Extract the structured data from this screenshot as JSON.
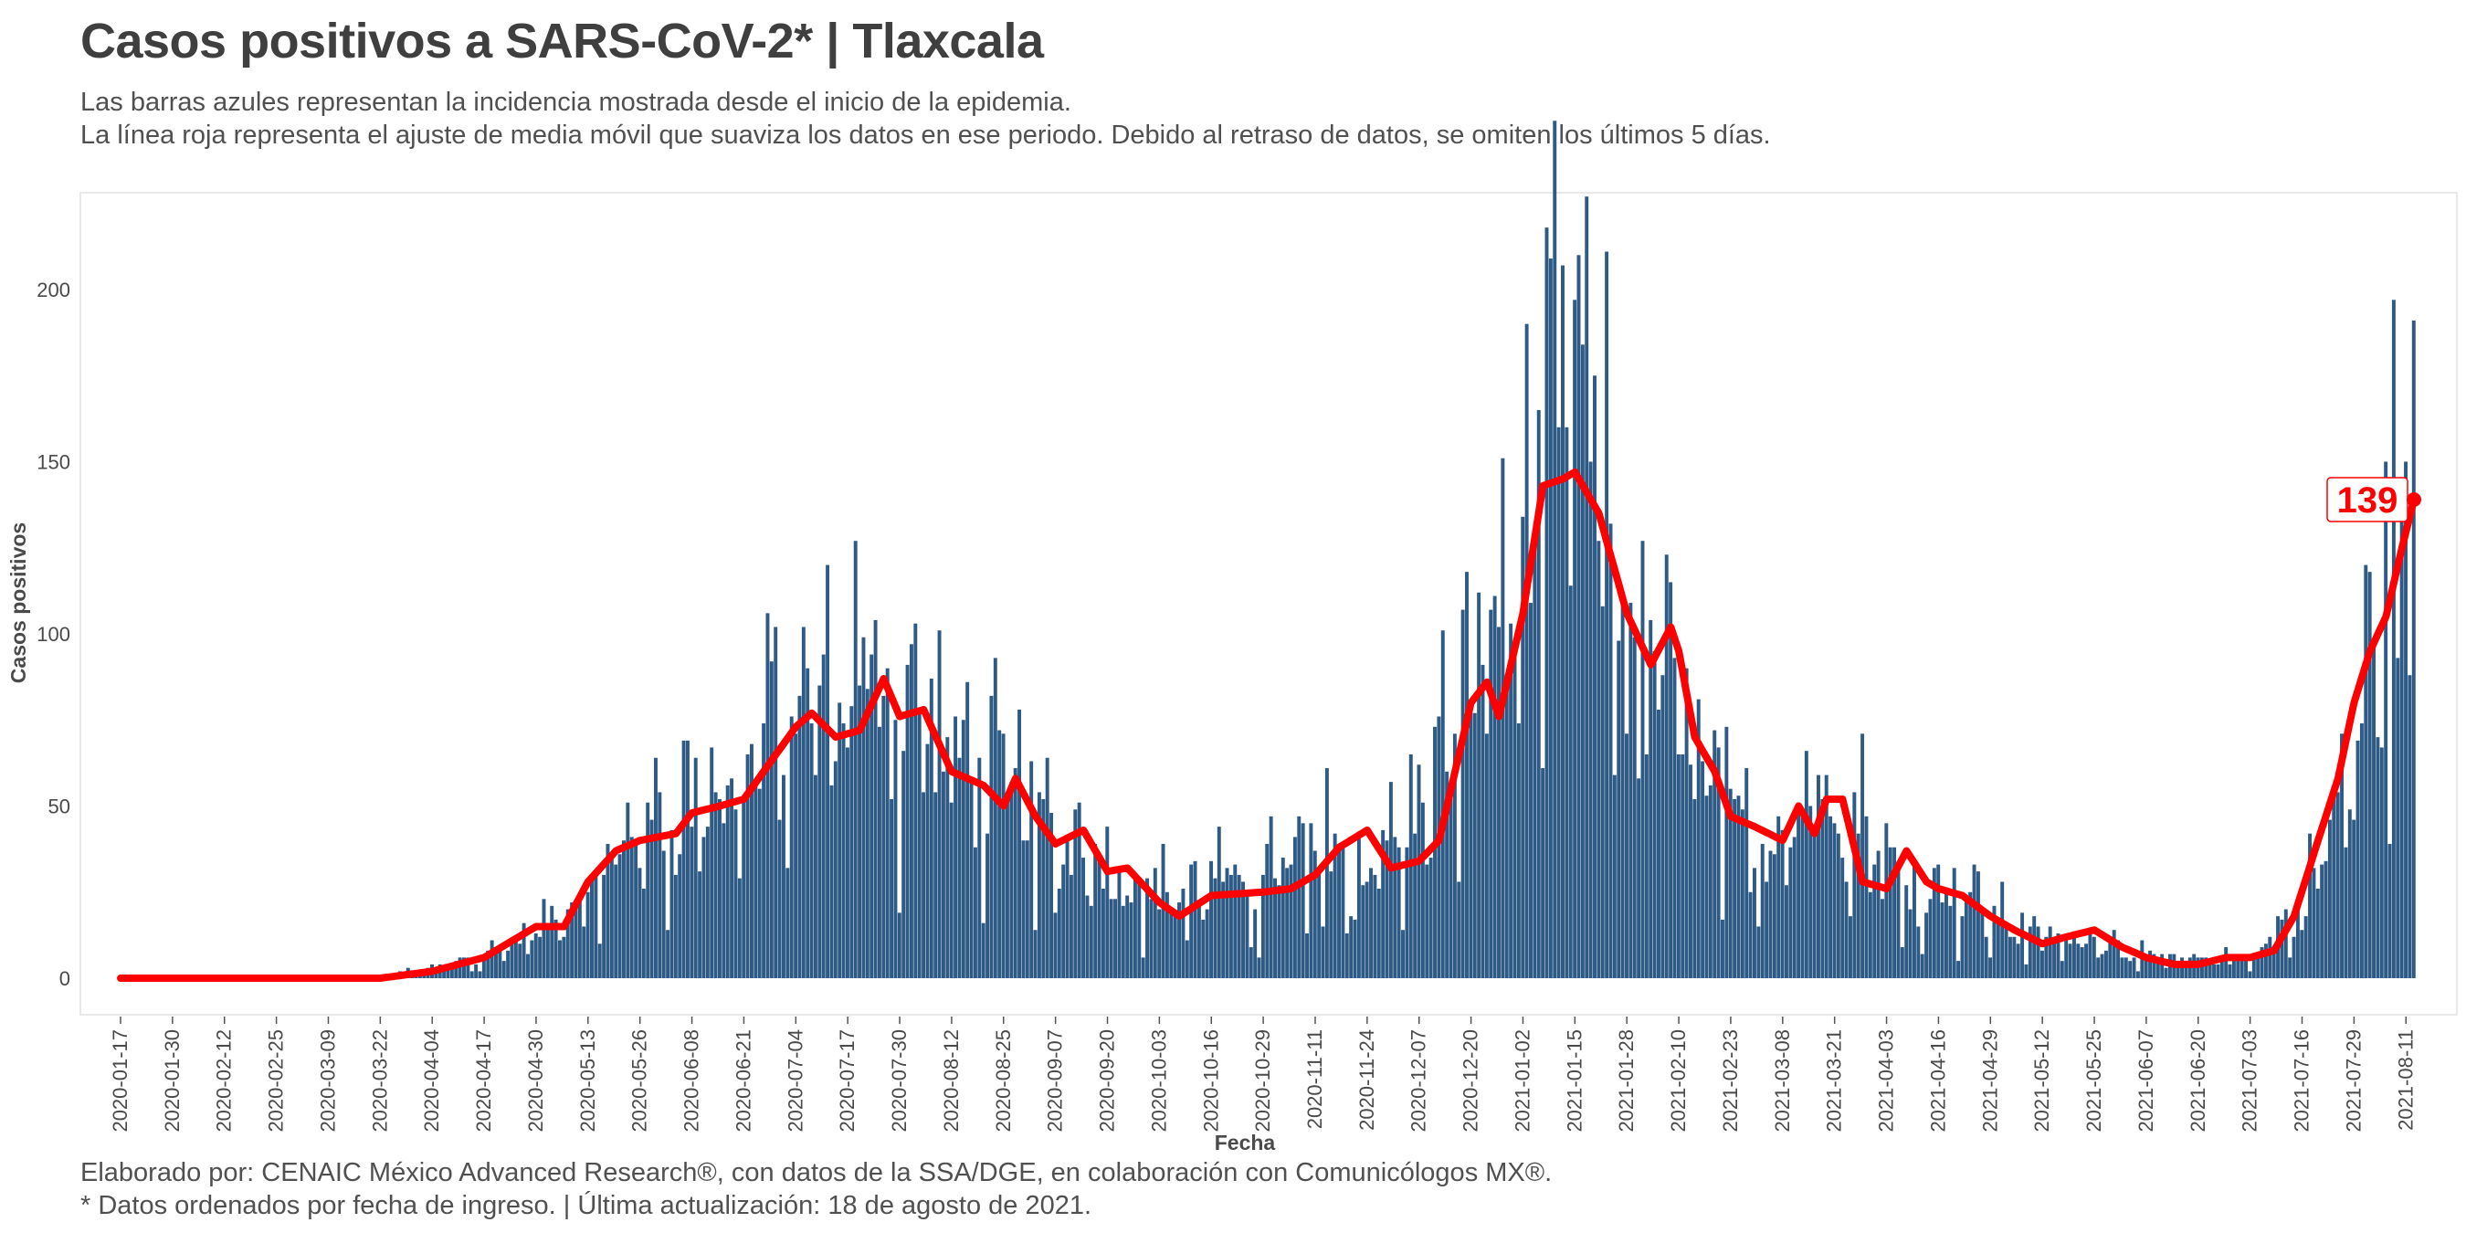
{
  "title": "Casos positivos a SARS-CoV-2* | Tlaxcala",
  "subtitle_line1": "Las barras azules representan la incidencia mostrada desde el inicio de la epidemia.",
  "subtitle_line2": "La línea roja representa el ajuste de media móvil que suaviza los datos en ese periodo. Debido al retraso de datos, se omiten los últimos 5 días.",
  "footer_line1": "Elaborado por: CENAIC México Advanced Research®, con datos de la SSA/DGE, en colaboración con Comunicólogos MX®.",
  "footer_line2": "* Datos ordenados por fecha de ingreso. | Última actualización: 18 de agosto de 2021.",
  "colors": {
    "bar": "#2e5a86",
    "line": "#ff0000",
    "text": "#444444"
  },
  "chart_data": {
    "type": "bar",
    "xlabel": "Fecha",
    "ylabel": "Casos positivos",
    "x_start": "2020-01-17",
    "x_end": "2021-08-13",
    "ylim": [
      -10,
      222
    ],
    "yticks": [
      0,
      50,
      100,
      150,
      200
    ],
    "xticks": [
      "2020-01-17",
      "2020-01-30",
      "2020-02-12",
      "2020-02-25",
      "2020-03-09",
      "2020-03-22",
      "2020-04-04",
      "2020-04-17",
      "2020-04-30",
      "2020-05-13",
      "2020-05-26",
      "2020-06-08",
      "2020-06-21",
      "2020-07-04",
      "2020-07-17",
      "2020-07-30",
      "2020-08-12",
      "2020-08-25",
      "2020-09-07",
      "2020-09-20",
      "2020-10-03",
      "2020-10-16",
      "2020-10-29",
      "2020-11-11",
      "2020-11-24",
      "2020-12-07",
      "2020-12-20",
      "2021-01-02",
      "2021-01-15",
      "2021-01-28",
      "2021-02-10",
      "2021-02-23",
      "2021-03-08",
      "2021-03-21",
      "2021-04-03",
      "2021-04-16",
      "2021-04-29",
      "2021-05-12",
      "2021-05-25",
      "2021-06-07",
      "2021-06-20",
      "2021-07-03",
      "2021-07-16",
      "2021-07-29",
      "2021-08-11"
    ],
    "bar_profile_dates": [
      "2020-01-17",
      "2020-03-05",
      "2020-03-25",
      "2020-04-05",
      "2020-04-17",
      "2020-04-30",
      "2020-05-13",
      "2020-05-26",
      "2020-06-08",
      "2020-06-21",
      "2020-07-04",
      "2020-07-12",
      "2020-07-20",
      "2020-07-30",
      "2020-08-12",
      "2020-08-25",
      "2020-09-07",
      "2020-09-20",
      "2020-10-03",
      "2020-10-16",
      "2020-10-29",
      "2020-11-11",
      "2020-11-18",
      "2020-11-24",
      "2020-12-07",
      "2020-12-20",
      "2020-12-26",
      "2021-01-02",
      "2021-01-08",
      "2021-01-15",
      "2021-01-20",
      "2021-01-28",
      "2021-02-05",
      "2021-02-10",
      "2021-02-16",
      "2021-02-23",
      "2021-03-08",
      "2021-03-15",
      "2021-03-21",
      "2021-03-28",
      "2021-04-03",
      "2021-04-16",
      "2021-04-29",
      "2021-05-12",
      "2021-05-25",
      "2021-06-07",
      "2021-06-20",
      "2021-07-03",
      "2021-07-16",
      "2021-07-29",
      "2021-08-03",
      "2021-08-08",
      "2021-08-13"
    ],
    "bar_profile_values": [
      0,
      0,
      1,
      3,
      7,
      13,
      27,
      44,
      53,
      62,
      84,
      80,
      92,
      84,
      68,
      58,
      45,
      34,
      26,
      28,
      30,
      38,
      46,
      36,
      48,
      92,
      104,
      120,
      166,
      175,
      160,
      120,
      90,
      78,
      60,
      50,
      44,
      55,
      60,
      48,
      32,
      30,
      20,
      12,
      12,
      7,
      5,
      6,
      22,
      60,
      100,
      130,
      150
    ],
    "moving_average_dates": [
      "2020-01-17",
      "2020-03-05",
      "2020-03-22",
      "2020-04-04",
      "2020-04-17",
      "2020-04-30",
      "2020-05-07",
      "2020-05-13",
      "2020-05-20",
      "2020-05-26",
      "2020-06-04",
      "2020-06-08",
      "2020-06-15",
      "2020-06-21",
      "2020-07-04",
      "2020-07-08",
      "2020-07-14",
      "2020-07-20",
      "2020-07-26",
      "2020-07-30",
      "2020-08-05",
      "2020-08-12",
      "2020-08-20",
      "2020-08-25",
      "2020-08-28",
      "2020-09-02",
      "2020-09-07",
      "2020-09-14",
      "2020-09-20",
      "2020-09-25",
      "2020-10-03",
      "2020-10-08",
      "2020-10-16",
      "2020-10-29",
      "2020-11-05",
      "2020-11-11",
      "2020-11-17",
      "2020-11-24",
      "2020-11-30",
      "2020-12-07",
      "2020-12-12",
      "2020-12-20",
      "2020-12-24",
      "2020-12-27",
      "2021-01-02",
      "2021-01-07",
      "2021-01-12",
      "2021-01-15",
      "2021-01-18",
      "2021-01-21",
      "2021-01-28",
      "2021-02-03",
      "2021-02-08",
      "2021-02-10",
      "2021-02-14",
      "2021-02-19",
      "2021-02-23",
      "2021-03-01",
      "2021-03-08",
      "2021-03-12",
      "2021-03-16",
      "2021-03-19",
      "2021-03-23",
      "2021-03-28",
      "2021-04-03",
      "2021-04-08",
      "2021-04-13",
      "2021-04-16",
      "2021-04-22",
      "2021-04-29",
      "2021-05-05",
      "2021-05-12",
      "2021-05-18",
      "2021-05-25",
      "2021-06-01",
      "2021-06-07",
      "2021-06-14",
      "2021-06-20",
      "2021-06-27",
      "2021-07-03",
      "2021-07-09",
      "2021-07-14",
      "2021-07-20",
      "2021-07-25",
      "2021-07-29",
      "2021-08-02",
      "2021-08-06",
      "2021-08-10",
      "2021-08-13"
    ],
    "moving_average_values": [
      0,
      0,
      0,
      2,
      6,
      15,
      15,
      28,
      37,
      40,
      42,
      48,
      50,
      52,
      73,
      77,
      70,
      72,
      87,
      76,
      78,
      60,
      56,
      50,
      58,
      47,
      39,
      43,
      31,
      32,
      22,
      18,
      24,
      25,
      26,
      30,
      38,
      43,
      32,
      34,
      40,
      80,
      86,
      76,
      106,
      143,
      145,
      147,
      141,
      135,
      106,
      91,
      102,
      95,
      70,
      60,
      47,
      44,
      40,
      50,
      42,
      52,
      52,
      28,
      26,
      37,
      28,
      26,
      24,
      18,
      14,
      10,
      12,
      14,
      9,
      6,
      4,
      4,
      6,
      6,
      8,
      18,
      40,
      58,
      80,
      95,
      105,
      125,
      139
    ],
    "end_label": "139"
  }
}
